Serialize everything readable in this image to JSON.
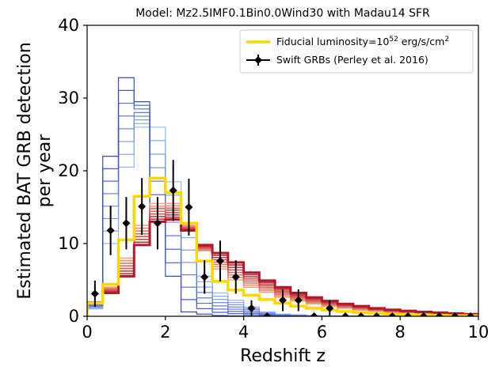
{
  "chart_data": {
    "type": "step",
    "title": "Model: Mz2.5IMF0.1Bin0.0Wind30 with Madau14 SFR",
    "xlabel": "Redshift z",
    "ylabel_line1": "Estimated BAT GRB detection",
    "ylabel_line2": "per year",
    "xlim": [
      0,
      10
    ],
    "ylim": [
      0,
      40
    ],
    "xticks": [
      "0",
      "2",
      "4",
      "6",
      "8",
      "10"
    ],
    "yticks": [
      "0",
      "10",
      "20",
      "30",
      "40"
    ],
    "bin_edges": [
      0,
      0.4,
      0.8,
      1.2,
      1.6,
      2.0,
      2.4,
      2.8,
      3.2,
      3.6,
      4.0,
      4.4,
      4.8,
      5.2,
      5.6,
      6.0,
      6.4,
      6.8,
      7.2,
      7.6,
      8.0,
      8.4,
      8.8,
      9.2,
      9.6,
      10.0
    ],
    "fiducial": {
      "name": "Fiducial luminosity=10",
      "sup": "52",
      "unit": " erg/s/cm",
      "unit_sup": "2",
      "color": "#FFD700",
      "values": [
        1.8,
        4.4,
        10.5,
        16.5,
        19.0,
        17.0,
        12.8,
        7.6,
        4.8,
        3.6,
        2.9,
        2.3,
        1.8,
        1.4,
        1.1,
        0.85,
        0.65,
        0.5,
        0.4,
        0.3,
        0.25,
        0.2,
        0.15,
        0.1,
        0.08
      ]
    },
    "red_series": {
      "color_dark": "#B2182B",
      "color_light": "#F4A582",
      "count": 8,
      "values_dark": [
        1.8,
        3.2,
        5.5,
        9.8,
        13.0,
        13.3,
        11.8,
        9.8,
        8.7,
        7.4,
        6.0,
        4.9,
        4.0,
        3.2,
        2.6,
        2.1,
        1.7,
        1.4,
        1.1,
        0.9,
        0.75,
        0.6,
        0.5,
        0.4,
        0.3
      ],
      "values_light": [
        2.0,
        4.0,
        8.0,
        12.5,
        15.5,
        15.5,
        12.5,
        9.0,
        6.5,
        5.0,
        4.0,
        3.3,
        2.6,
        2.1,
        1.7,
        1.35,
        1.1,
        0.85,
        0.7,
        0.55,
        0.45,
        0.35,
        0.3,
        0.25,
        0.2
      ]
    },
    "blue_series": {
      "color_dark": "#3B4CC0",
      "color_light": "#9BB8F0",
      "count": 8,
      "values_dark": [
        1.8,
        22.0,
        32.8,
        29.5,
        13.0,
        5.5,
        0.6,
        0.3,
        0.1,
        0.05,
        0.02,
        0,
        0,
        0,
        0,
        0,
        0,
        0,
        0,
        0,
        0,
        0,
        0,
        0,
        0
      ],
      "values_light": [
        1.0,
        10.0,
        20.5,
        26.0,
        26.0,
        18.5,
        12.5,
        5.5,
        3.2,
        2.2,
        1.3,
        0.6,
        0.3,
        0.2,
        0.1,
        0.05,
        0.03,
        0.02,
        0.01,
        0,
        0,
        0,
        0,
        0,
        0
      ]
    },
    "observed": {
      "name": "Swift GRBs (Perley et al. 2016)",
      "color": "#000000",
      "x": [
        0.2,
        0.6,
        1.0,
        1.4,
        1.8,
        2.2,
        2.6,
        3.0,
        3.4,
        3.8,
        4.2,
        4.6,
        5.0,
        5.4,
        5.8,
        6.2,
        6.6,
        7.0,
        7.4,
        7.8,
        8.2,
        8.6,
        9.0,
        9.4,
        9.8
      ],
      "y": [
        3.1,
        11.8,
        12.8,
        15.1,
        12.8,
        17.3,
        15.0,
        5.4,
        7.6,
        5.4,
        1.1,
        0,
        2.2,
        2.2,
        0,
        1.1,
        0,
        0,
        0,
        0,
        0,
        0,
        0,
        0,
        0
      ],
      "yerr": [
        1.8,
        3.4,
        3.6,
        3.9,
        3.6,
        4.2,
        3.9,
        2.3,
        2.8,
        2.3,
        1.1,
        0,
        1.5,
        1.5,
        0,
        1.1,
        0,
        0,
        0,
        0,
        0,
        0,
        0,
        0,
        0
      ]
    },
    "legend_position": "upper-right"
  }
}
